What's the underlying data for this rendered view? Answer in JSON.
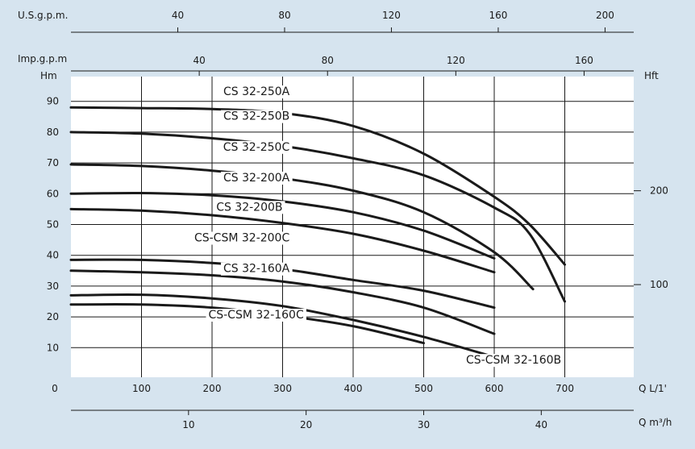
{
  "chart_data": {
    "type": "line",
    "title": "",
    "axes": {
      "q_lmin": {
        "label": "Q L/1'",
        "ticks": [
          0,
          100,
          200,
          300,
          400,
          500,
          600,
          700
        ],
        "range": [
          0,
          790
        ]
      },
      "q_m3h": {
        "label": "Q m³/h",
        "ticks": [
          10,
          20,
          30,
          40
        ]
      },
      "us_gpm": {
        "label": "U.S.g.p.m.",
        "ticks": [
          40,
          80,
          120,
          160,
          200
        ]
      },
      "imp_gpm": {
        "label": "Imp.g.p.m",
        "ticks": [
          40,
          80,
          120,
          160
        ]
      },
      "head_m": {
        "label": "Hm",
        "ticks": [
          10,
          20,
          30,
          40,
          50,
          60,
          70,
          80,
          90
        ],
        "range": [
          -5,
          100
        ]
      },
      "head_ft": {
        "label": "Hft",
        "ticks": [
          100,
          200
        ]
      }
    },
    "grid": true,
    "series": [
      {
        "name": "CS 32-250A",
        "label_pos": [
          310,
          92
        ],
        "points": [
          [
            0,
            88
          ],
          [
            100,
            87.8
          ],
          [
            200,
            87.5
          ],
          [
            300,
            86.2
          ],
          [
            400,
            82
          ],
          [
            500,
            73
          ],
          [
            600,
            59
          ],
          [
            650,
            50
          ],
          [
            700,
            37
          ]
        ]
      },
      {
        "name": "CS 32-250B",
        "label_pos": [
          310,
          84
        ],
        "points": [
          [
            0,
            80
          ],
          [
            100,
            79.5
          ],
          [
            200,
            78
          ],
          [
            300,
            75.5
          ],
          [
            400,
            71.5
          ],
          [
            500,
            66
          ],
          [
            600,
            55.5
          ],
          [
            650,
            47
          ],
          [
            700,
            25
          ]
        ]
      },
      {
        "name": "CS 32-250C",
        "label_pos": [
          310,
          74
        ],
        "points": [
          [
            0,
            69.5
          ],
          [
            100,
            69
          ],
          [
            200,
            67.5
          ],
          [
            300,
            65
          ],
          [
            400,
            61
          ],
          [
            500,
            54
          ],
          [
            600,
            41
          ],
          [
            655,
            29
          ]
        ]
      },
      {
        "name": "CS 32-200A",
        "label_pos": [
          310,
          64
        ],
        "points": [
          [
            0,
            60
          ],
          [
            100,
            60.2
          ],
          [
            200,
            59.5
          ],
          [
            300,
            57.5
          ],
          [
            400,
            54
          ],
          [
            500,
            48
          ],
          [
            600,
            39
          ]
        ]
      },
      {
        "name": "CS 32-200B",
        "label_pos": [
          300,
          54.5
        ],
        "points": [
          [
            0,
            55
          ],
          [
            100,
            54.5
          ],
          [
            200,
            53
          ],
          [
            300,
            50.5
          ],
          [
            400,
            47
          ],
          [
            500,
            41.5
          ],
          [
            600,
            34.5
          ]
        ]
      },
      {
        "name": "CS-CSM 32-200C",
        "label_pos": [
          310,
          44.5
        ],
        "points": [
          [
            0,
            38.5
          ],
          [
            100,
            38.5
          ],
          [
            200,
            37.5
          ],
          [
            300,
            35.5
          ],
          [
            400,
            32
          ],
          [
            500,
            28.5
          ],
          [
            600,
            23
          ]
        ]
      },
      {
        "name": "CS 32-160A",
        "label_pos": [
          310,
          34.5
        ],
        "points": [
          [
            0,
            35
          ],
          [
            100,
            34.5
          ],
          [
            200,
            33.5
          ],
          [
            300,
            31.5
          ],
          [
            400,
            28
          ],
          [
            500,
            23
          ],
          [
            600,
            14.5
          ]
        ]
      },
      {
        "name": "CS-CSM 32-160C",
        "label_pos": [
          330,
          19.5
        ],
        "points": [
          [
            0,
            24
          ],
          [
            100,
            24
          ],
          [
            200,
            23
          ],
          [
            300,
            20.5
          ],
          [
            400,
            17
          ],
          [
            500,
            11.5
          ]
        ]
      },
      {
        "name": "CS-CSM 32-160B",
        "label_pos": [
          695,
          4.8
        ],
        "points": [
          [
            0,
            27
          ],
          [
            100,
            27.2
          ],
          [
            200,
            26
          ],
          [
            300,
            23.5
          ],
          [
            400,
            19
          ],
          [
            500,
            13.5
          ],
          [
            600,
            7
          ]
        ]
      }
    ]
  }
}
